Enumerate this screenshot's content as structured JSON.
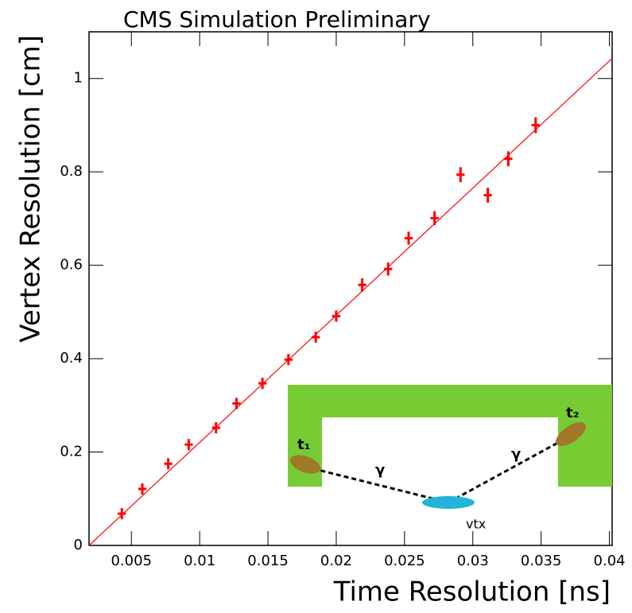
{
  "chart_data": {
    "type": "scatter",
    "title": "CMS Simulation Preliminary",
    "x_label": "Time Resolution [ns]",
    "y_label": "Vertex Resolution [cm]",
    "xlim": [
      0.0019,
      0.0402
    ],
    "ylim": [
      0,
      1.1
    ],
    "xticks": [
      0.005,
      0.01,
      0.015,
      0.02,
      0.025,
      0.03,
      0.035,
      0.04
    ],
    "yticks": [
      0,
      0.2,
      0.4,
      0.6,
      0.8,
      1
    ],
    "series": [
      {
        "type": "scatter",
        "color": "#ff0000",
        "x": [
          0.0043,
          0.0058,
          0.0077,
          0.0092,
          0.0112,
          0.0127,
          0.0146,
          0.0165,
          0.0185,
          0.02,
          0.0219,
          0.0238,
          0.0253,
          0.0272,
          0.0291,
          0.0311,
          0.0326,
          0.0346
        ],
        "values": [
          0.068,
          0.121,
          0.175,
          0.216,
          0.252,
          0.304,
          0.347,
          0.398,
          0.446,
          0.491,
          0.558,
          0.592,
          0.658,
          0.701,
          0.794,
          0.75,
          0.828,
          0.9
        ],
        "xerr": [
          0.0003,
          0.0003,
          0.0003,
          0.0003,
          0.0003,
          0.0003,
          0.0003,
          0.0003,
          0.0003,
          0.0003,
          0.0003,
          0.0003,
          0.0003,
          0.0003,
          0.0003,
          0.0003,
          0.0003,
          0.0003
        ],
        "yerr": [
          0.012,
          0.012,
          0.012,
          0.012,
          0.012,
          0.012,
          0.012,
          0.012,
          0.012,
          0.012,
          0.014,
          0.014,
          0.014,
          0.015,
          0.016,
          0.016,
          0.016,
          0.017
        ]
      },
      {
        "type": "line",
        "color": "#ff0000",
        "x": [
          0.0019,
          0.0402
        ],
        "values": [
          0,
          1.043
        ]
      }
    ],
    "inset": {
      "labels": [
        "t₁",
        "γ",
        "γ",
        "t₂",
        "vtx"
      ]
    }
  }
}
